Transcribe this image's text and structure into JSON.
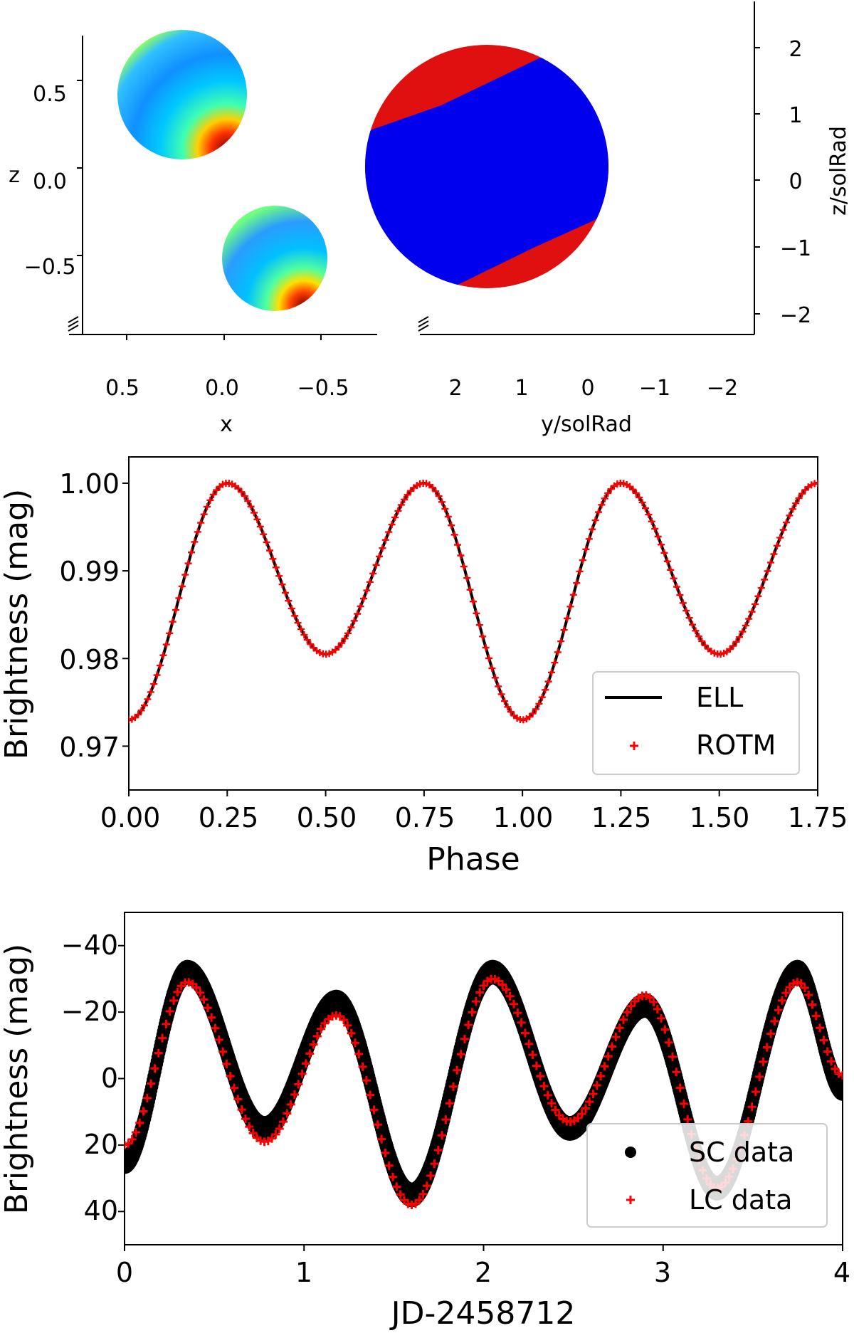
{
  "chart_data": [
    {
      "type": "3d-surface",
      "panel": "top-left",
      "xlabel": "x",
      "zlabel": "z",
      "x_ticks": [
        "0.5",
        "0.0",
        "−0.5"
      ],
      "z_ticks": [
        "0.5",
        "0.0",
        "−0.5"
      ],
      "colormap": "jet",
      "objects": [
        "upper star",
        "lower star"
      ]
    },
    {
      "type": "3d-surface",
      "panel": "top-right",
      "xlabel": "y/solRad",
      "zlabel": "z/solRad",
      "y_ticks": [
        "2",
        "1",
        "0",
        "−1",
        "−2"
      ],
      "z_ticks": [
        "2",
        "1",
        "0",
        "−1",
        "−2"
      ],
      "colors": {
        "body": "#0000ee",
        "caps": "#e01010"
      }
    },
    {
      "type": "line",
      "panel": "middle",
      "xlabel": "Phase",
      "ylabel": "Brightness (mag)",
      "xlim": [
        0.0,
        1.75
      ],
      "ylim": [
        0.965,
        1.003
      ],
      "x_ticks": [
        "0.00",
        "0.25",
        "0.50",
        "0.75",
        "1.00",
        "1.25",
        "1.50",
        "1.75"
      ],
      "y_ticks": [
        "0.97",
        "0.98",
        "0.99",
        "1.00"
      ],
      "series": [
        {
          "name": "ELL",
          "style": "line",
          "color": "#000000",
          "x": [
            0.0,
            0.25,
            0.5,
            0.75,
            1.0,
            1.25,
            1.5,
            1.75
          ],
          "y": [
            0.973,
            1.0,
            0.9805,
            1.0,
            0.973,
            1.0,
            0.9805,
            1.0
          ]
        },
        {
          "name": "ROTM",
          "style": "plus",
          "color": "#ff0000",
          "x": [
            0.0,
            0.25,
            0.5,
            0.75,
            1.0,
            1.25,
            1.5,
            1.75
          ],
          "y": [
            0.973,
            1.0,
            0.9805,
            1.0,
            0.973,
            1.0,
            0.9805,
            1.0
          ]
        }
      ],
      "legend": "lower-right"
    },
    {
      "type": "scatter",
      "panel": "bottom",
      "xlabel": "JD-2458712",
      "ylabel": "Brightness (mag)",
      "xlim": [
        0,
        4
      ],
      "ylim": [
        50,
        -50
      ],
      "x_ticks": [
        "0",
        "1",
        "2",
        "3",
        "4"
      ],
      "y_ticks": [
        "−40",
        "−20",
        "0",
        "20",
        "40"
      ],
      "series": [
        {
          "name": "SC data",
          "style": "dot",
          "color": "#000000",
          "x": [
            0.0,
            0.35,
            0.78,
            1.18,
            1.6,
            2.05,
            2.48,
            2.9,
            3.3,
            3.75,
            4.0
          ],
          "y": [
            25,
            -32,
            15,
            -23,
            35,
            -32,
            15,
            -22,
            33,
            -32,
            3
          ]
        },
        {
          "name": "LC data",
          "style": "plus",
          "color": "#ff0000",
          "x": [
            0.0,
            0.35,
            0.78,
            1.18,
            1.6,
            2.05,
            2.48,
            2.9,
            3.3,
            3.75,
            4.0
          ],
          "y": [
            20,
            -29,
            19,
            -19,
            38,
            -30,
            13,
            -25,
            33,
            -29,
            -1
          ]
        }
      ],
      "legend": "lower-right"
    }
  ]
}
